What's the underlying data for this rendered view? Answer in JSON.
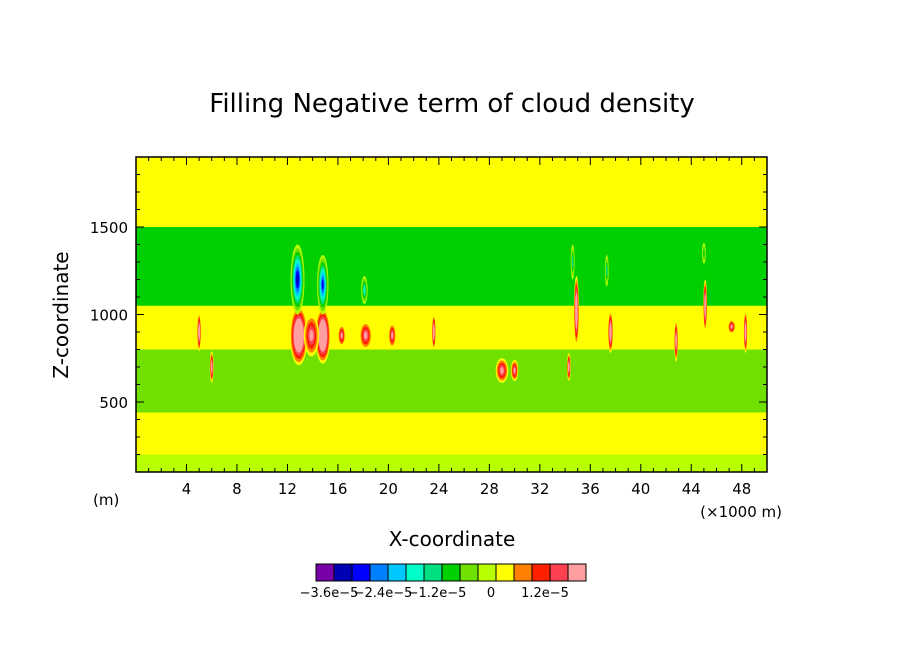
{
  "chart_data": {
    "type": "heatmap",
    "title": "Filling Negative term of cloud density",
    "xlabel": "X-coordinate",
    "ylabel": "Z-coordinate",
    "x_unit_note": "(m)",
    "x_scale_note": "(×1000 m)",
    "xlim": [
      0,
      50
    ],
    "ylim": [
      100,
      1900
    ],
    "x_ticks": [
      4,
      8,
      12,
      16,
      20,
      24,
      28,
      32,
      36,
      40,
      44,
      48
    ],
    "y_ticks": [
      500,
      1000,
      1500
    ],
    "background_level": 0,
    "bands": [
      {
        "z": [
          100,
          200
        ],
        "level": -0.3
      },
      {
        "z": [
          200,
          440
        ],
        "level": 0
      },
      {
        "z": [
          440,
          800
        ],
        "level": -0.5
      },
      {
        "z": [
          800,
          1050
        ],
        "level": 0
      },
      {
        "z": [
          1050,
          1500
        ],
        "level": -1
      },
      {
        "z": [
          1500,
          1900
        ],
        "level": 0
      }
    ],
    "features": [
      {
        "x": 12.9,
        "z": 880,
        "level": 3.6,
        "rx": 0.7,
        "rz": 170
      },
      {
        "x": 14.8,
        "z": 880,
        "level": 3.6,
        "rx": 0.6,
        "rz": 160
      },
      {
        "x": 13.9,
        "z": 880,
        "level": 2,
        "rx": 0.6,
        "rz": 120
      },
      {
        "x": 16.3,
        "z": 880,
        "level": 2,
        "rx": 0.3,
        "rz": 60
      },
      {
        "x": 18.2,
        "z": 880,
        "level": 2,
        "rx": 0.5,
        "rz": 80
      },
      {
        "x": 20.3,
        "z": 880,
        "level": 2,
        "rx": 0.3,
        "rz": 70
      },
      {
        "x": 29.0,
        "z": 680,
        "level": 2,
        "rx": 0.5,
        "rz": 70
      },
      {
        "x": 30.0,
        "z": 680,
        "level": 2,
        "rx": 0.3,
        "rz": 60
      },
      {
        "x": 47.2,
        "z": 930,
        "level": 2,
        "rx": 0.3,
        "rz": 40
      },
      {
        "x": 12.8,
        "z": 1200,
        "level": -3.6,
        "rx": 0.55,
        "rz": 200
      },
      {
        "x": 14.8,
        "z": 1170,
        "level": -3.2,
        "rx": 0.45,
        "rz": 170
      },
      {
        "x": 18.1,
        "z": 1140,
        "level": -2,
        "rx": 0.25,
        "rz": 80
      },
      {
        "x": 5.0,
        "z": 900,
        "level": 2.8,
        "rx": 0.15,
        "rz": 110
      },
      {
        "x": 6.0,
        "z": 700,
        "level": 2.4,
        "rx": 0.15,
        "rz": 90
      },
      {
        "x": 23.6,
        "z": 900,
        "level": 2.8,
        "rx": 0.15,
        "rz": 100
      },
      {
        "x": 34.3,
        "z": 700,
        "level": 2.4,
        "rx": 0.15,
        "rz": 80
      },
      {
        "x": 34.9,
        "z": 1020,
        "level": 3.0,
        "rx": 0.2,
        "rz": 200
      },
      {
        "x": 37.6,
        "z": 900,
        "level": 2.8,
        "rx": 0.2,
        "rz": 120
      },
      {
        "x": 42.8,
        "z": 850,
        "level": 2.4,
        "rx": 0.15,
        "rz": 120
      },
      {
        "x": 45.1,
        "z": 1050,
        "level": 2.8,
        "rx": 0.15,
        "rz": 150
      },
      {
        "x": 48.3,
        "z": 900,
        "level": 2.8,
        "rx": 0.15,
        "rz": 120
      },
      {
        "x": 34.6,
        "z": 1300,
        "level": -1.6,
        "rx": 0.15,
        "rz": 100
      },
      {
        "x": 37.3,
        "z": 1250,
        "level": -1.6,
        "rx": 0.15,
        "rz": 90
      },
      {
        "x": 45.0,
        "z": 1350,
        "level": -1.2,
        "rx": 0.15,
        "rz": 60
      }
    ],
    "colorbar": {
      "colors": [
        "#7700a8",
        "#0000b4",
        "#0000ff",
        "#0080ff",
        "#00c8ff",
        "#00ffc8",
        "#00e080",
        "#00d000",
        "#70e000",
        "#b8ff00",
        "#ffff00",
        "#ff8000",
        "#ff2000",
        "#ff4050",
        "#ff9ea0"
      ],
      "tick_labels": [
        "−3.6e−5",
        "−2.4e−5",
        "−1.2e−5",
        "0",
        "1.2e−5"
      ]
    }
  }
}
